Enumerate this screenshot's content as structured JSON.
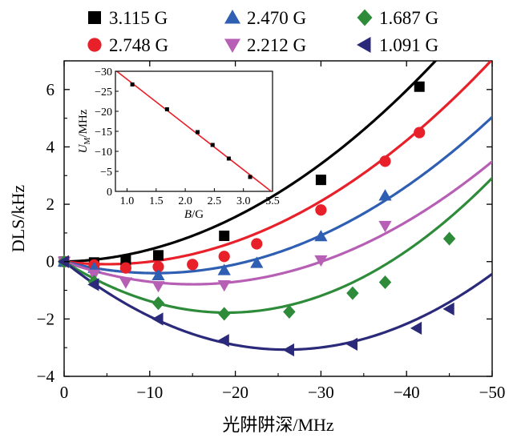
{
  "chart_data": [
    {
      "type": "line",
      "title": "",
      "xlabel": "光阱阱深/MHz",
      "ylabel": "DLS/kHz",
      "xlim": [
        0,
        -50
      ],
      "ylim": [
        -4,
        7
      ],
      "xticks": [
        0,
        -10,
        -20,
        -30,
        -40,
        -50
      ],
      "yticks": [
        -4,
        -2,
        0,
        2,
        4,
        6
      ],
      "legend_position": "top",
      "series": [
        {
          "name": "3.115 G",
          "marker": "square",
          "color": "#000000",
          "points": [
            [
              0,
              0
            ],
            [
              -3.5,
              -0.03
            ],
            [
              -7.2,
              0.05
            ],
            [
              -11,
              0.22
            ],
            [
              -18.7,
              0.9
            ],
            [
              -30,
              2.85
            ],
            [
              -41.5,
              6.1
            ]
          ],
          "curve": [
            0.0,
            -0.0065,
            0.00357
          ]
        },
        {
          "name": "2.748 G",
          "marker": "circle",
          "color": "#e8202a",
          "points": [
            [
              0,
              0
            ],
            [
              -3.5,
              -0.12
            ],
            [
              -7.2,
              -0.22
            ],
            [
              -11,
              -0.18
            ],
            [
              -15,
              -0.1
            ],
            [
              -18.7,
              0.18
            ],
            [
              -22.5,
              0.62
            ],
            [
              -30,
              1.8
            ],
            [
              -37.5,
              3.5
            ],
            [
              -41.5,
              4.5
            ]
          ],
          "curve": [
            0.0,
            0.0356,
            0.00353
          ]
        },
        {
          "name": "2.470 G",
          "marker": "triangle-up",
          "color": "#2f5fb3",
          "points": [
            [
              0,
              0
            ],
            [
              -3.5,
              -0.22
            ],
            [
              -11,
              -0.48
            ],
            [
              -18.7,
              -0.3
            ],
            [
              -22.5,
              -0.05
            ],
            [
              -30,
              0.88
            ],
            [
              -37.5,
              2.3
            ]
          ],
          "curve": [
            0.0,
            0.0752,
            0.00352
          ]
        },
        {
          "name": "2.212 G",
          "marker": "triangle-down",
          "color": "#b65fb5",
          "points": [
            [
              0,
              0
            ],
            [
              -3.5,
              -0.45
            ],
            [
              -7.2,
              -0.72
            ],
            [
              -11,
              -0.85
            ],
            [
              -18.7,
              -0.82
            ],
            [
              -30,
              0.05
            ],
            [
              -37.5,
              1.25
            ]
          ],
          "curve": [
            0.0,
            0.1052,
            0.0035
          ]
        },
        {
          "name": "1.687 G",
          "marker": "diamond",
          "color": "#2e8b3a",
          "points": [
            [
              0,
              0
            ],
            [
              -3.5,
              -0.7
            ],
            [
              -11,
              -1.45
            ],
            [
              -18.7,
              -1.82
            ],
            [
              -26.3,
              -1.75
            ],
            [
              -33.7,
              -1.1
            ],
            [
              -37.5,
              -0.72
            ],
            [
              -45,
              0.8
            ]
          ],
          "curve": [
            0.0,
            0.1867,
            0.0049
          ]
        },
        {
          "name": "1.091 G",
          "marker": "triangle-left",
          "color": "#2b2a7a",
          "points": [
            [
              0,
              0
            ],
            [
              -3.5,
              -0.8
            ],
            [
              -11,
              -2.0
            ],
            [
              -18.7,
              -2.75
            ],
            [
              -26.3,
              -3.08
            ],
            [
              -33.7,
              -2.88
            ],
            [
              -41.2,
              -2.32
            ],
            [
              -45,
              -1.65
            ]
          ],
          "curve": [
            0.0,
            0.2366,
            0.00456
          ]
        }
      ]
    },
    {
      "type": "scatter",
      "title": "inset",
      "xlabel": "B/G",
      "ylabel": "U_M/MHz",
      "xlim": [
        0.8,
        3.5
      ],
      "ylim": [
        0,
        -30
      ],
      "xticks": [
        1.0,
        1.5,
        2.0,
        2.5,
        3.0,
        3.5
      ],
      "xtick_labels": [
        "1.0",
        "1.5",
        "2.0",
        "2.5",
        "3.0",
        "3.5"
      ],
      "yticks": [
        0,
        -5,
        -10,
        -15,
        -20,
        -25,
        -30
      ],
      "points": [
        [
          1.091,
          -26.7
        ],
        [
          1.687,
          -20.5
        ],
        [
          2.212,
          -14.8
        ],
        [
          2.47,
          -11.6
        ],
        [
          2.748,
          -8.2
        ],
        [
          3.115,
          -3.6
        ]
      ],
      "fit_line": {
        "slope": 11.3,
        "intercept": -39.3,
        "color": "#e8202a"
      }
    }
  ]
}
